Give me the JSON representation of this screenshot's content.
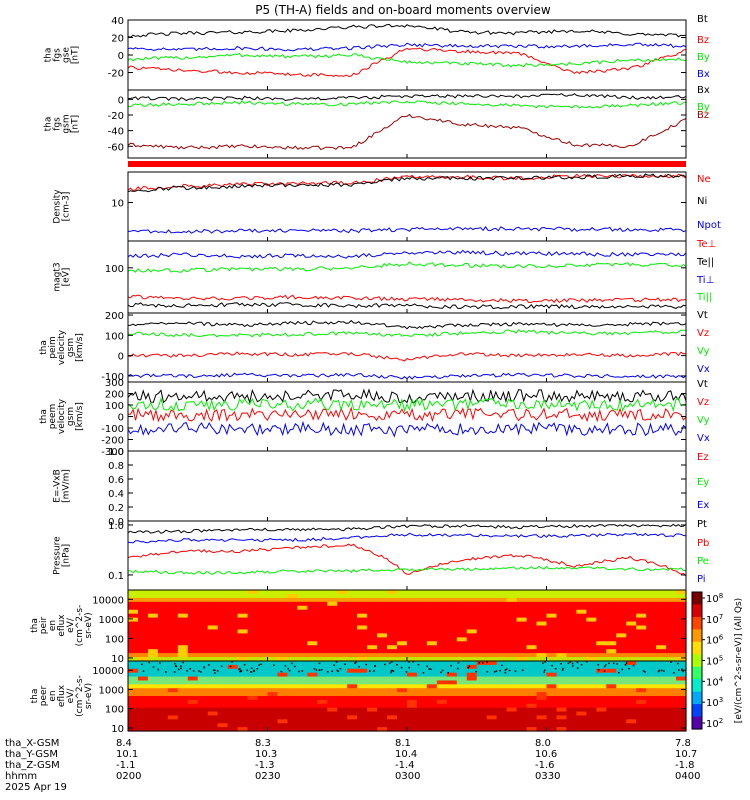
{
  "title": "P5 (TH-A) fields and on-board moments overview",
  "colors": {
    "black": "#000000",
    "red": "#ff0000",
    "green": "#00ee00",
    "blue": "#0000ff",
    "dark_red": "#990000"
  },
  "chart_data": [
    {
      "type": "line",
      "id": "fgs_gse",
      "ylabel": [
        "tha",
        "fgs",
        "gse",
        "[nT]"
      ],
      "ylim": [
        -40,
        40
      ],
      "yticks": [
        "40",
        "20",
        "0",
        "-20"
      ],
      "series": [
        {
          "name": "Bt",
          "color": "black",
          "x": [
            0,
            0.1,
            0.2,
            0.3,
            0.4,
            0.5,
            0.6,
            0.7,
            0.8,
            0.9,
            1.0
          ],
          "values": [
            22,
            25,
            26,
            28,
            32,
            34,
            26,
            25,
            28,
            24,
            22
          ]
        },
        {
          "name": "Bz",
          "color": "red",
          "x": [
            0,
            0.1,
            0.2,
            0.3,
            0.4,
            0.5,
            0.6,
            0.7,
            0.8,
            0.9,
            1.0
          ],
          "values": [
            -14,
            -18,
            -20,
            -22,
            -24,
            8,
            4,
            2,
            -20,
            -16,
            5
          ]
        },
        {
          "name": "By",
          "color": "green",
          "x": [
            0,
            0.1,
            0.2,
            0.3,
            0.4,
            0.5,
            0.6,
            0.7,
            0.8,
            0.9,
            1.0
          ],
          "values": [
            -5,
            -3,
            0,
            -2,
            0,
            -8,
            -10,
            -12,
            -10,
            -6,
            -5
          ]
        },
        {
          "name": "Bx",
          "color": "blue",
          "x": [
            0,
            0.1,
            0.2,
            0.3,
            0.4,
            0.5,
            0.6,
            0.7,
            0.8,
            0.9,
            1.0
          ],
          "values": [
            8,
            6,
            8,
            6,
            8,
            12,
            10,
            10,
            10,
            12,
            10
          ]
        }
      ]
    },
    {
      "type": "line",
      "id": "fgs_gsm",
      "ylabel": [
        "tha",
        "fgs",
        "gsm",
        "[nT]"
      ],
      "ylim": [
        -75,
        12
      ],
      "yticks": [
        "0",
        "-20",
        "-40",
        "-60"
      ],
      "series": [
        {
          "name": "Bx",
          "color": "black",
          "x": [
            0,
            0.1,
            0.2,
            0.3,
            0.4,
            0.5,
            0.6,
            0.7,
            0.8,
            0.9,
            1.0
          ],
          "values": [
            2,
            0,
            2,
            0,
            2,
            4,
            4,
            4,
            6,
            2,
            4
          ]
        },
        {
          "name": "By",
          "color": "green",
          "x": [
            0,
            0.1,
            0.2,
            0.3,
            0.4,
            0.5,
            0.6,
            0.7,
            0.8,
            0.9,
            1.0
          ],
          "values": [
            -8,
            -6,
            -4,
            -6,
            -6,
            -2,
            -6,
            -8,
            -10,
            -8,
            -4
          ]
        },
        {
          "name": "Bz",
          "color": "dark_red",
          "x": [
            0,
            0.1,
            0.2,
            0.3,
            0.4,
            0.5,
            0.6,
            0.7,
            0.8,
            0.9,
            1.0
          ],
          "values": [
            -58,
            -62,
            -60,
            -62,
            -62,
            -20,
            -32,
            -36,
            -58,
            -60,
            -26
          ]
        }
      ]
    },
    {
      "type": "line",
      "id": "density",
      "ylabel": [
        "Density",
        "[cm-3]"
      ],
      "scale": "log",
      "ylim": [
        2.5,
        30
      ],
      "yticks": [
        "10"
      ],
      "series": [
        {
          "name": "Ne",
          "color": "red",
          "x": [
            0,
            0.1,
            0.2,
            0.3,
            0.4,
            0.5,
            0.6,
            0.7,
            0.8,
            0.9,
            1.0
          ],
          "values": [
            16,
            18,
            19,
            20,
            20,
            25,
            25,
            24,
            26,
            26,
            26
          ]
        },
        {
          "name": "Ni",
          "color": "black",
          "x": [
            0,
            0.1,
            0.2,
            0.3,
            0.4,
            0.5,
            0.6,
            0.7,
            0.8,
            0.9,
            1.0
          ],
          "values": [
            15,
            17,
            18,
            19,
            19,
            24,
            24,
            24,
            25,
            26,
            26
          ]
        },
        {
          "name": "Npot",
          "color": "blue",
          "x": [
            0,
            0.1,
            0.2,
            0.3,
            0.4,
            0.5,
            0.6,
            0.7,
            0.8,
            0.9,
            1.0
          ],
          "values": [
            3.6,
            3.5,
            3.6,
            3.7,
            3.6,
            3.8,
            3.9,
            3.9,
            3.8,
            3.8,
            3.7
          ]
        }
      ]
    },
    {
      "type": "line",
      "id": "temperature",
      "ylabel": [
        "magt3",
        "[eV]"
      ],
      "scale": "log",
      "ylim": [
        20,
        260
      ],
      "yticks": [
        "100"
      ],
      "series": [
        {
          "name": "Te⊥",
          "color": "red",
          "x": [
            0,
            0.1,
            0.2,
            0.3,
            0.4,
            0.5,
            0.6,
            0.7,
            0.8,
            0.9,
            1.0
          ],
          "values": [
            36,
            33,
            34,
            35,
            34,
            33,
            32,
            31,
            31,
            32,
            32
          ]
        },
        {
          "name": "Te||",
          "color": "black",
          "x": [
            0,
            0.1,
            0.2,
            0.3,
            0.4,
            0.5,
            0.6,
            0.7,
            0.8,
            0.9,
            1.0
          ],
          "values": [
            27,
            26,
            27,
            27,
            26,
            26,
            25,
            25,
            25,
            25,
            25
          ]
        },
        {
          "name": "Ti⊥",
          "color": "blue",
          "x": [
            0,
            0.1,
            0.2,
            0.3,
            0.4,
            0.5,
            0.6,
            0.7,
            0.8,
            0.9,
            1.0
          ],
          "values": [
            150,
            160,
            150,
            155,
            150,
            170,
            175,
            165,
            165,
            160,
            160
          ]
        },
        {
          "name": "Ti||",
          "color": "green",
          "x": [
            0,
            0.1,
            0.2,
            0.3,
            0.4,
            0.5,
            0.6,
            0.7,
            0.8,
            0.9,
            1.0
          ],
          "values": [
            90,
            92,
            95,
            95,
            100,
            115,
            110,
            105,
            110,
            112,
            110
          ]
        }
      ]
    },
    {
      "type": "line",
      "id": "ion_velocity",
      "ylabel": [
        "tha",
        "peim",
        "velocity",
        "gsm",
        "[km/s]"
      ],
      "ylim": [
        -130,
        210
      ],
      "yticks": [
        "200",
        "100",
        "0",
        "-100"
      ],
      "series": [
        {
          "name": "Vt",
          "color": "black",
          "x": [
            0,
            0.1,
            0.2,
            0.3,
            0.4,
            0.5,
            0.6,
            0.7,
            0.8,
            0.9,
            1.0
          ],
          "values": [
            150,
            160,
            150,
            160,
            165,
            140,
            150,
            155,
            150,
            155,
            160
          ]
        },
        {
          "name": "Vz",
          "color": "red",
          "x": [
            0,
            0.1,
            0.2,
            0.3,
            0.4,
            0.5,
            0.6,
            0.7,
            0.8,
            0.9,
            1.0
          ],
          "values": [
            0,
            0,
            10,
            5,
            10,
            -20,
            10,
            0,
            5,
            0,
            10
          ]
        },
        {
          "name": "Vy",
          "color": "green",
          "x": [
            0,
            0.1,
            0.2,
            0.3,
            0.4,
            0.5,
            0.6,
            0.7,
            0.8,
            0.9,
            1.0
          ],
          "values": [
            110,
            100,
            100,
            105,
            110,
            100,
            110,
            120,
            110,
            110,
            120
          ]
        },
        {
          "name": "Vx",
          "color": "blue",
          "x": [
            0,
            0.1,
            0.2,
            0.3,
            0.4,
            0.5,
            0.6,
            0.7,
            0.8,
            0.9,
            1.0
          ],
          "values": [
            -100,
            -100,
            -95,
            -100,
            -95,
            -110,
            -100,
            -95,
            -100,
            -100,
            -105
          ]
        }
      ]
    },
    {
      "type": "line",
      "id": "electron_velocity",
      "ylabel": [
        "tha",
        "peem",
        "velocity",
        "gsm",
        "[km/s]"
      ],
      "ylim": [
        -300,
        300
      ],
      "yticks": [
        "300",
        "200",
        "100",
        "0",
        "-100",
        "-200",
        "-300"
      ],
      "series": [
        {
          "name": "Vt",
          "color": "black",
          "x": [
            0,
            0.1,
            0.2,
            0.3,
            0.4,
            0.5,
            0.6,
            0.7,
            0.8,
            0.9,
            1.0
          ],
          "values": [
            170,
            180,
            175,
            180,
            190,
            170,
            175,
            180,
            180,
            175,
            180
          ]
        },
        {
          "name": "Vz",
          "color": "red",
          "x": [
            0,
            0.1,
            0.2,
            0.3,
            0.4,
            0.5,
            0.6,
            0.7,
            0.8,
            0.9,
            1.0
          ],
          "values": [
            20,
            10,
            20,
            15,
            20,
            10,
            15,
            20,
            15,
            10,
            20
          ]
        },
        {
          "name": "Vy",
          "color": "green",
          "x": [
            0,
            0.1,
            0.2,
            0.3,
            0.4,
            0.5,
            0.6,
            0.7,
            0.8,
            0.9,
            1.0
          ],
          "values": [
            110,
            100,
            110,
            100,
            110,
            100,
            110,
            120,
            110,
            100,
            110
          ]
        },
        {
          "name": "Vx",
          "color": "blue",
          "x": [
            0,
            0.1,
            0.2,
            0.3,
            0.4,
            0.5,
            0.6,
            0.7,
            0.8,
            0.9,
            1.0
          ],
          "values": [
            -110,
            -100,
            -110,
            -105,
            -110,
            -120,
            -110,
            -100,
            -110,
            -110,
            -115
          ]
        }
      ]
    },
    {
      "type": "line",
      "id": "electric_field",
      "ylabel": [
        "E=-VxB",
        "[mV/m]"
      ],
      "ylim": [
        0,
        1.0
      ],
      "yticks": [
        "1.0",
        "0.8",
        "0.6",
        "0.4",
        "0.2",
        "0.0"
      ],
      "series": [
        {
          "name": "Ez",
          "color": "red",
          "values": []
        },
        {
          "name": "Ey",
          "color": "green",
          "values": []
        },
        {
          "name": "Ex",
          "color": "blue",
          "values": []
        }
      ]
    },
    {
      "type": "line",
      "id": "pressure",
      "ylabel": [
        "Pressure",
        "[nPa]"
      ],
      "scale": "log",
      "ylim": [
        0.05,
        1.2
      ],
      "yticks": [
        "1.0",
        "0.1"
      ],
      "series": [
        {
          "name": "Pt",
          "color": "black",
          "x": [
            0,
            0.1,
            0.2,
            0.3,
            0.4,
            0.5,
            0.6,
            0.7,
            0.8,
            0.9,
            1.0
          ],
          "values": [
            0.7,
            0.75,
            0.8,
            0.8,
            0.82,
            0.95,
            0.95,
            0.9,
            0.95,
            0.98,
            0.98
          ]
        },
        {
          "name": "Pb",
          "color": "red",
          "x": [
            0,
            0.1,
            0.2,
            0.3,
            0.4,
            0.5,
            0.6,
            0.7,
            0.8,
            0.9,
            1.0
          ],
          "values": [
            0.22,
            0.3,
            0.3,
            0.35,
            0.4,
            0.1,
            0.2,
            0.25,
            0.15,
            0.22,
            0.1
          ]
        },
        {
          "name": "Pe",
          "color": "green",
          "x": [
            0,
            0.1,
            0.2,
            0.3,
            0.4,
            0.5,
            0.6,
            0.7,
            0.8,
            0.9,
            1.0
          ],
          "values": [
            0.12,
            0.11,
            0.11,
            0.12,
            0.12,
            0.13,
            0.13,
            0.14,
            0.14,
            0.13,
            0.13
          ]
        },
        {
          "name": "Pi",
          "color": "blue",
          "x": [
            0,
            0.1,
            0.2,
            0.3,
            0.4,
            0.5,
            0.6,
            0.7,
            0.8,
            0.9,
            1.0
          ],
          "values": [
            0.45,
            0.5,
            0.5,
            0.5,
            0.55,
            0.65,
            0.62,
            0.6,
            0.6,
            0.65,
            0.62
          ]
        }
      ]
    },
    {
      "type": "heatmap",
      "id": "ion_spectrogram",
      "ylabel": [
        "tha",
        "peir",
        "en",
        "eflux",
        "eV/",
        "(cm^2-s-",
        "sr-eV)"
      ],
      "scale": "log",
      "ylim": [
        7,
        30000
      ],
      "yticks": [
        "10000",
        "1000",
        "100",
        "10"
      ]
    },
    {
      "type": "heatmap",
      "id": "electron_spectrogram",
      "ylabel": [
        "tha",
        "peer",
        "en",
        "eflux",
        "eV/",
        "(cm^2-s-",
        "sr-eV)"
      ],
      "scale": "log",
      "ylim": [
        7,
        30000
      ],
      "yticks": [
        "10000",
        "1000",
        "100",
        "10"
      ]
    }
  ],
  "colorbar": {
    "label": "[eV/(cm^2-s-sr-eV)] (All Qs)",
    "ticks": [
      "10^8",
      "10^7",
      "10^6",
      "10^5",
      "10^4",
      "10^3",
      "10^2"
    ]
  },
  "x_axis": {
    "row_labels": [
      "tha_X-GSM",
      "tha_Y-GSM",
      "tha_Z-GSM",
      "hhmm",
      "2025 Apr 19"
    ],
    "columns": [
      {
        "values": [
          "8.4",
          "10.1",
          "-1.1",
          "0200"
        ]
      },
      {
        "values": [
          "8.3",
          "10.3",
          "-1.3",
          "0230"
        ]
      },
      {
        "values": [
          "8.1",
          "10.4",
          "-1.4",
          "0300"
        ]
      },
      {
        "values": [
          "8.0",
          "10.6",
          "-1.6",
          "0330"
        ]
      },
      {
        "values": [
          "7.8",
          "10.7",
          "-1.8",
          "0400"
        ]
      }
    ]
  }
}
